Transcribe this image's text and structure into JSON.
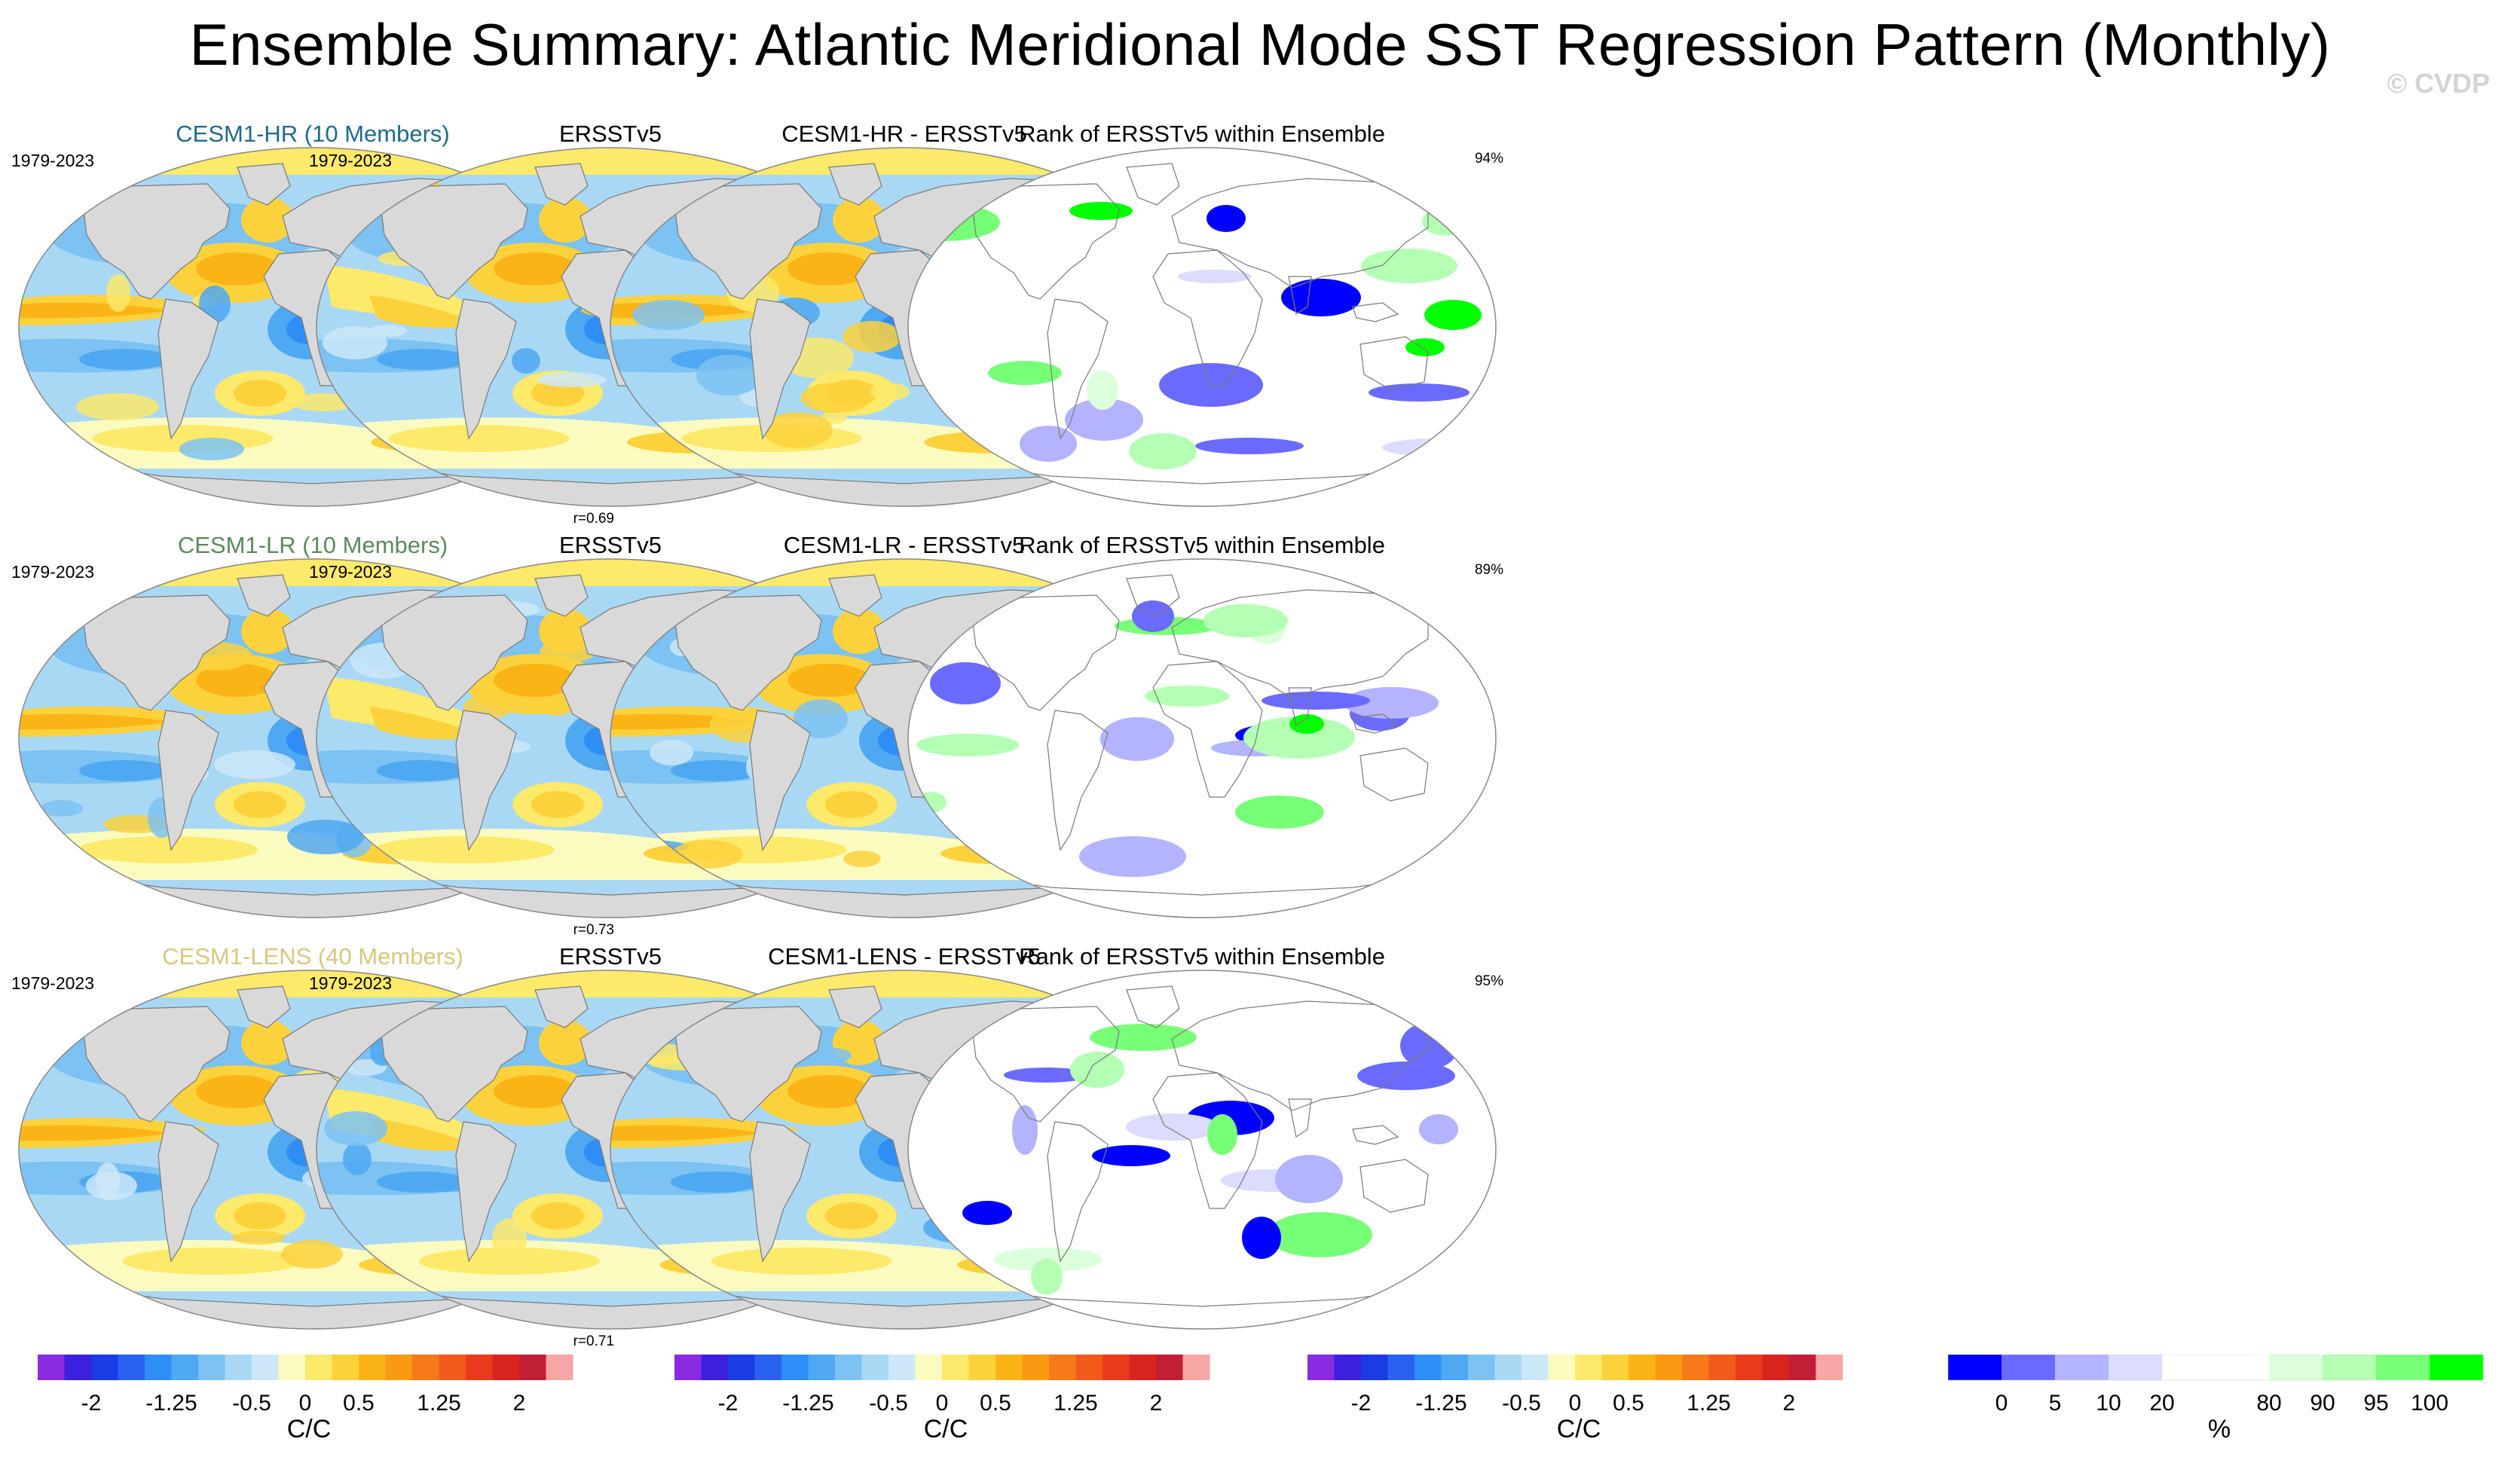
{
  "title": "Ensemble Summary: Atlantic Meridional Mode SST Regression Pattern (Monthly)",
  "watermark": "© CVDP",
  "rows": [
    {
      "model": "CESM1-HR (10 Members)",
      "model_color": "#1f6a8c",
      "period": "1979-2023",
      "pattern_corr": "r=0.69",
      "obs_title": "ERSSTv5",
      "obs_period": "1979-2023",
      "diff_title": "CESM1-HR - ERSSTv5",
      "rank_title": "Rank of ERSSTv5 within Ensemble",
      "rank_pct": "94%"
    },
    {
      "model": "CESM1-LR (10 Members)",
      "model_color": "#5c8a5c",
      "period": "1979-2023",
      "pattern_corr": "r=0.73",
      "obs_title": "ERSSTv5",
      "obs_period": "1979-2023",
      "diff_title": "CESM1-LR - ERSSTv5",
      "rank_title": "Rank of ERSSTv5 within Ensemble",
      "rank_pct": "89%"
    },
    {
      "model": "CESM1-LENS (40 Members)",
      "model_color": "#d8c87c",
      "period": "1979-2023",
      "pattern_corr": "r=0.71",
      "obs_title": "ERSSTv5",
      "obs_period": "1979-2023",
      "diff_title": "CESM1-LENS - ERSSTv5",
      "rank_title": "Rank of ERSSTv5 within Ensemble",
      "rank_pct": "95%"
    }
  ],
  "colors": {
    "sst": [
      "#8a2be2",
      "#3d1fe0",
      "#1a3be6",
      "#2a62f0",
      "#2e8ef5",
      "#4fa8f2",
      "#7cc2f2",
      "#a9d8f5",
      "#cce8f8",
      "#fbfbc0",
      "#fde96a",
      "#fcd23c",
      "#fbb416",
      "#f99a12",
      "#f6791a",
      "#f25a1c",
      "#ea3a1c",
      "#d9231e",
      "#c11f35",
      "#f7a6a6"
    ],
    "rank": [
      "#0000ff",
      "#6a6aff",
      "#b3b3ff",
      "#dcdcff",
      "#ffffff",
      "#ffffff",
      "#dcffdc",
      "#b4ffb4",
      "#78ff78",
      "#00ff00"
    ]
  },
  "colorbars": {
    "sst": {
      "ticks": [
        "-2",
        "-1.25",
        "-0.5",
        "0",
        "0.5",
        "1.25",
        "2"
      ],
      "unit": "C/C"
    },
    "rank": {
      "ticks": [
        "0",
        "5",
        "10",
        "20",
        "80",
        "90",
        "95",
        "100"
      ],
      "unit": "%"
    }
  },
  "chart_data": {
    "type": "heatmap",
    "description_fields": "Global SST regression maps on AMM index; columns: model ensemble mean, observations (ERSSTv5), difference, rank of obs within ensemble",
    "sst_levels": [
      -2,
      -1.75,
      -1.5,
      -1.25,
      -1,
      -0.75,
      -0.5,
      -0.25,
      -0.1,
      0,
      0.1,
      0.25,
      0.5,
      0.75,
      1,
      1.25,
      1.5,
      1.75,
      2
    ],
    "rank_levels": [
      0,
      5,
      10,
      20,
      80,
      90,
      95,
      100
    ],
    "units": {
      "regression": "C/C",
      "rank": "%"
    },
    "period": "1979-2023",
    "pattern_correlations": [
      0.69,
      0.73,
      0.71
    ],
    "rank_percent_within_ensemble": [
      94,
      89,
      95
    ]
  }
}
